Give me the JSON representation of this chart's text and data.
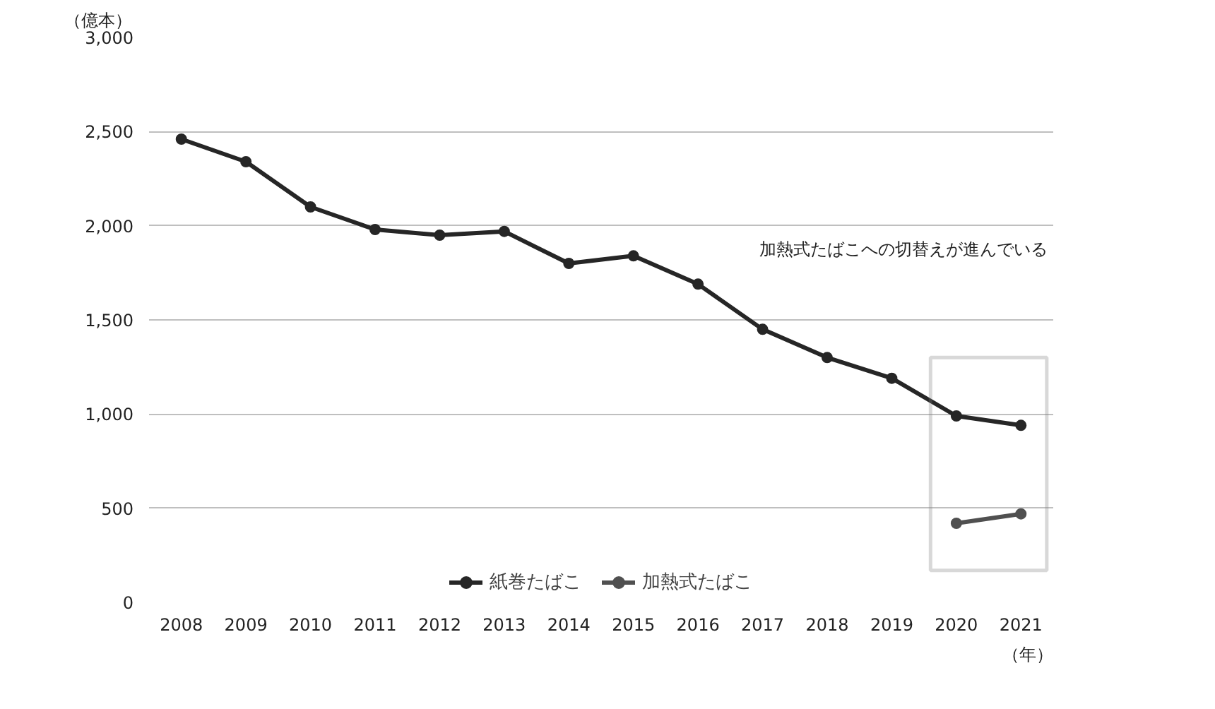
{
  "chart_data": {
    "type": "line",
    "ylabel": "（億本）",
    "xlabel": "（年）",
    "categories": [
      "2008",
      "2009",
      "2010",
      "2011",
      "2012",
      "2013",
      "2014",
      "2015",
      "2016",
      "2017",
      "2018",
      "2019",
      "2020",
      "2021"
    ],
    "series": [
      {
        "name": "紙巻たばこ",
        "color": "#262626",
        "values": [
          2460,
          2340,
          2100,
          1980,
          1950,
          1970,
          1800,
          1840,
          1690,
          1450,
          1300,
          1190,
          990,
          940
        ]
      },
      {
        "name": "加熱式たばこ",
        "color": "#505050",
        "values": [
          null,
          null,
          null,
          null,
          null,
          null,
          null,
          null,
          null,
          null,
          null,
          null,
          420,
          470
        ]
      }
    ],
    "annotations": [
      "加熱式たばこへの切替えが進んでいる"
    ],
    "ylim": [
      0,
      3000
    ],
    "yticks": [
      0,
      {
        "value": 500,
        "label": "500"
      },
      {
        "value": 1000,
        "label": "1,000"
      },
      {
        "value": 1500,
        "label": "1,500"
      },
      {
        "value": 2000,
        "label": "2,000"
      },
      {
        "value": 2500,
        "label": "2,500"
      },
      {
        "value": 3000,
        "label": "3,000"
      }
    ],
    "grid": "y",
    "legend": "bottom",
    "marker": "circle",
    "line_style": "solid"
  }
}
